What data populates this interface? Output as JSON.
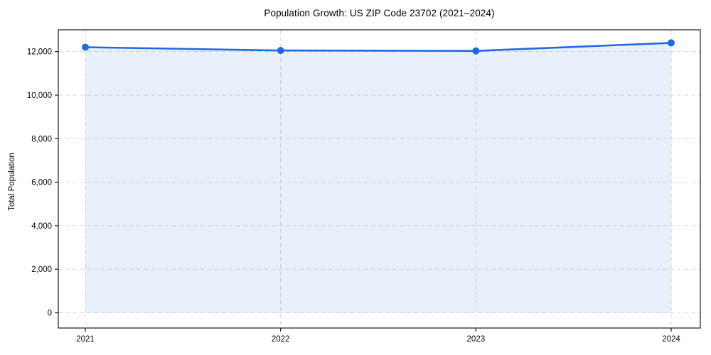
{
  "chart_data": {
    "type": "area",
    "title": "Population Growth: US ZIP Code 23702 (2021–2024)",
    "xlabel": "",
    "ylabel": "Total Population",
    "categories": [
      "2021",
      "2022",
      "2023",
      "2024"
    ],
    "series": [
      {
        "name": "Total Population",
        "values": [
          12200,
          12050,
          12030,
          12400
        ]
      }
    ],
    "yticks": [
      0,
      2000,
      4000,
      6000,
      8000,
      10000,
      12000
    ],
    "ylim": [
      -700,
      13000
    ],
    "grid": true,
    "grid_style": "dashed",
    "legend": "none",
    "marker": "circle",
    "colors": {
      "line": "#2169e0",
      "fill_rgba": "rgba(33,105,224,0.10)",
      "grid": "#d9d9d9",
      "axis": "#1a1a1a",
      "text": "#000000",
      "background": "#ffffff"
    }
  }
}
